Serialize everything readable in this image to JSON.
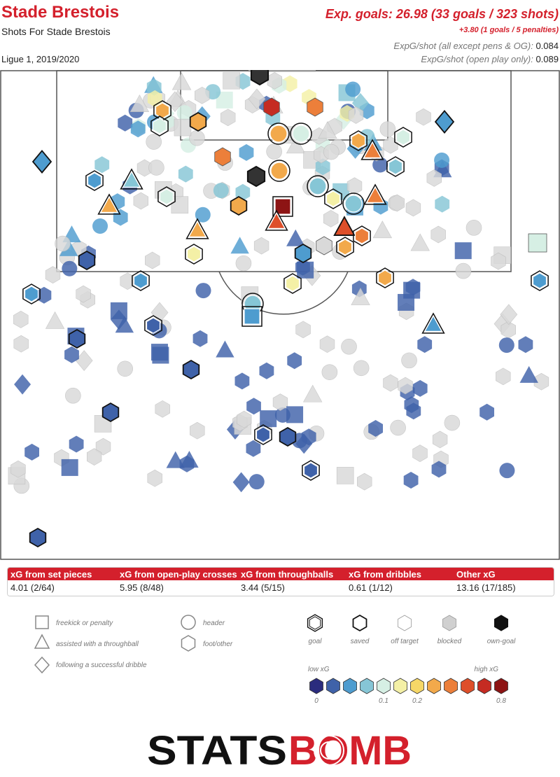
{
  "header": {
    "team": "Stade Brestois",
    "subtitle": "Shots For Stade Brestois",
    "competition": "Ligue 1, 2019/2020",
    "xg_main": "Exp. goals: 26.98 (33 goals / 323 shots)",
    "xg_penalties": "+3.80 (1 goals / 5 penalties)",
    "xg_per_shot_all_label": "ExpG/shot (all except pens & OG):",
    "xg_per_shot_all_value": "0.084",
    "xg_per_shot_open_label": "ExpG/shot (open play only):",
    "xg_per_shot_open_value": "0.089"
  },
  "breakdown": {
    "headers": [
      "xG from set pieces",
      "xG from open-play crosses",
      "xG from throughballs",
      "xG from dribbles",
      "Other xG"
    ],
    "values": [
      "4.01 (2/64)",
      "5.95 (8/48)",
      "3.44 (5/15)",
      "0.61 (1/12)",
      "13.16 (17/185)"
    ]
  },
  "legend": {
    "shape_labels": {
      "freekick": "freekick or penalty",
      "throughball": "assisted with a throughball",
      "dribble": "following a successful dribble",
      "header": "header",
      "foot": "foot/other"
    },
    "outcome_labels": {
      "goal": "goal",
      "saved": "saved",
      "off_target": "off target",
      "blocked": "blocked",
      "own_goal": "own-goal"
    },
    "scale_low": "low xG",
    "scale_high": "high xG",
    "scale_ticks": [
      "0",
      "0.1",
      "0.2",
      "0.8"
    ],
    "scale_colors": [
      "#2b2c7e",
      "#3f62a9",
      "#4e9ccf",
      "#86c6d6",
      "#d6efe4",
      "#f4f0a6",
      "#f6d767",
      "#f2a94b",
      "#ec7f3a",
      "#de4f2a",
      "#c52b22",
      "#8d1414"
    ]
  },
  "logo": {
    "part1": "STATS",
    "part2": "BOMB"
  },
  "colors": {
    "brand_red": "#d4202c",
    "blocked_grey": "#d9d9d9",
    "pitch_line": "#555555"
  },
  "chart_data": {
    "type": "scatter",
    "title": "Shots For Stade Brestois",
    "x_axis": "pitch width, 0 = left touchline, 80 = right touchline (visible half)",
    "y_axis": "distance from goal line, 0 = goal line, 70 = bottom of visible area",
    "xlim": [
      0,
      80
    ],
    "ylim": [
      0,
      70
    ],
    "points": [
      {
        "x": 37.1,
        "y": 0.7,
        "xg": 0.0,
        "shape": "foot",
        "outcome": "own-goal"
      },
      {
        "x": 38.8,
        "y": 5.3,
        "xg": 0.7,
        "shape": "foot",
        "outcome": "off"
      },
      {
        "x": 45.0,
        "y": 5.3,
        "xg": 0.35,
        "shape": "foot",
        "outcome": "off"
      },
      {
        "x": 23.2,
        "y": 5.8,
        "xg": 0.2,
        "shape": "foot",
        "outcome": "goal"
      },
      {
        "x": 28.3,
        "y": 7.4,
        "xg": 0.2,
        "shape": "foot",
        "outcome": "saved"
      },
      {
        "x": 22.8,
        "y": 8.0,
        "xg": 0.09,
        "shape": "foot",
        "outcome": "goal"
      },
      {
        "x": 63.5,
        "y": 7.4,
        "xg": 0.03,
        "shape": "dribble",
        "outcome": "saved"
      },
      {
        "x": 39.8,
        "y": 9.1,
        "xg": 0.2,
        "shape": "header",
        "outcome": "goal"
      },
      {
        "x": 43.0,
        "y": 9.1,
        "xg": 0.09,
        "shape": "header",
        "outcome": "goal"
      },
      {
        "x": 51.2,
        "y": 10.1,
        "xg": 0.2,
        "shape": "foot",
        "outcome": "goal"
      },
      {
        "x": 57.6,
        "y": 9.6,
        "xg": 0.09,
        "shape": "foot",
        "outcome": "goal"
      },
      {
        "x": 53.2,
        "y": 11.6,
        "xg": 0.3,
        "shape": "throughball",
        "outcome": "goal"
      },
      {
        "x": 31.8,
        "y": 12.4,
        "xg": 0.3,
        "shape": "foot",
        "outcome": "off"
      },
      {
        "x": 6.0,
        "y": 13.1,
        "xg": 0.03,
        "shape": "dribble",
        "outcome": "saved"
      },
      {
        "x": 56.5,
        "y": 13.8,
        "xg": 0.04,
        "shape": "foot",
        "outcome": "goal"
      },
      {
        "x": 36.6,
        "y": 15.2,
        "xg": 0.0,
        "shape": "foot",
        "outcome": "own-goal"
      },
      {
        "x": 39.9,
        "y": 14.4,
        "xg": 0.2,
        "shape": "header",
        "outcome": "goal"
      },
      {
        "x": 13.5,
        "y": 15.8,
        "xg": 0.02,
        "shape": "foot",
        "outcome": "goal"
      },
      {
        "x": 18.8,
        "y": 15.8,
        "xg": 0.04,
        "shape": "throughball",
        "outcome": "goal"
      },
      {
        "x": 23.8,
        "y": 18.1,
        "xg": 0.09,
        "shape": "foot",
        "outcome": "goal"
      },
      {
        "x": 45.4,
        "y": 16.6,
        "xg": 0.04,
        "shape": "header",
        "outcome": "goal"
      },
      {
        "x": 47.6,
        "y": 18.4,
        "xg": 0.1,
        "shape": "foot",
        "outcome": "goal"
      },
      {
        "x": 53.6,
        "y": 18.0,
        "xg": 0.3,
        "shape": "throughball",
        "outcome": "goal"
      },
      {
        "x": 15.6,
        "y": 19.4,
        "xg": 0.2,
        "shape": "throughball",
        "outcome": "goal"
      },
      {
        "x": 34.1,
        "y": 19.4,
        "xg": 0.2,
        "shape": "foot",
        "outcome": "saved"
      },
      {
        "x": 40.4,
        "y": 19.5,
        "xg": 0.8,
        "shape": "freekick",
        "outcome": "goal"
      },
      {
        "x": 50.5,
        "y": 19.1,
        "xg": 0.04,
        "shape": "header",
        "outcome": "goal"
      },
      {
        "x": 28.2,
        "y": 22.9,
        "xg": 0.2,
        "shape": "throughball",
        "outcome": "goal"
      },
      {
        "x": 39.5,
        "y": 21.7,
        "xg": 0.55,
        "shape": "throughball",
        "outcome": "goal"
      },
      {
        "x": 49.2,
        "y": 22.5,
        "xg": 0.55,
        "shape": "throughball",
        "outcome": "saved"
      },
      {
        "x": 51.7,
        "y": 23.7,
        "xg": 0.3,
        "shape": "foot",
        "outcome": "goal"
      },
      {
        "x": 49.3,
        "y": 25.3,
        "xg": 0.2,
        "shape": "foot",
        "outcome": "goal"
      },
      {
        "x": 43.3,
        "y": 26.2,
        "xg": 0.03,
        "shape": "foot",
        "outcome": "saved"
      },
      {
        "x": 27.7,
        "y": 26.3,
        "xg": 0.1,
        "shape": "foot",
        "outcome": "goal"
      },
      {
        "x": 41.8,
        "y": 30.5,
        "xg": 0.1,
        "shape": "foot",
        "outcome": "goal"
      },
      {
        "x": 55.0,
        "y": 29.7,
        "xg": 0.2,
        "shape": "foot",
        "outcome": "goal"
      },
      {
        "x": 20.1,
        "y": 30.1,
        "xg": 0.03,
        "shape": "foot",
        "outcome": "goal"
      },
      {
        "x": 12.4,
        "y": 27.2,
        "xg": 0.01,
        "shape": "foot",
        "outcome": "saved"
      },
      {
        "x": 36.1,
        "y": 33.4,
        "xg": 0.04,
        "shape": "header",
        "outcome": "goal"
      },
      {
        "x": 36.0,
        "y": 35.2,
        "xg": 0.03,
        "shape": "freekick",
        "outcome": "goal"
      },
      {
        "x": 61.9,
        "y": 36.4,
        "xg": 0.03,
        "shape": "throughball",
        "outcome": "goal"
      },
      {
        "x": 21.9,
        "y": 36.5,
        "xg": 0.01,
        "shape": "foot",
        "outcome": "goal"
      },
      {
        "x": 11.0,
        "y": 38.4,
        "xg": 0.01,
        "shape": "foot",
        "outcome": "saved"
      },
      {
        "x": 27.3,
        "y": 42.8,
        "xg": 0.01,
        "shape": "foot",
        "outcome": "saved"
      },
      {
        "x": 15.8,
        "y": 48.9,
        "xg": 0.01,
        "shape": "foot",
        "outcome": "saved"
      },
      {
        "x": 37.6,
        "y": 52.1,
        "xg": 0.01,
        "shape": "foot",
        "outcome": "goal"
      },
      {
        "x": 41.1,
        "y": 52.4,
        "xg": 0.01,
        "shape": "foot",
        "outcome": "saved"
      },
      {
        "x": 44.4,
        "y": 57.2,
        "xg": 0.01,
        "shape": "foot",
        "outcome": "goal"
      },
      {
        "x": 5.4,
        "y": 66.8,
        "xg": 0.01,
        "shape": "foot",
        "outcome": "saved"
      },
      {
        "x": 77.1,
        "y": 30.1,
        "xg": 0.02,
        "shape": "foot",
        "outcome": "goal"
      },
      {
        "x": 4.5,
        "y": 32.0,
        "xg": 0.02,
        "shape": "foot",
        "outcome": "goal"
      },
      {
        "x": 76.8,
        "y": 24.7,
        "xg": 0.07,
        "shape": "freekick",
        "outcome": "off"
      },
      {
        "x": 46.3,
        "y": 25.1,
        "xg": 0.2,
        "shape": "foot",
        "outcome": "blocked"
      }
    ],
    "series_note": "Main goal / on-target / off-target markers read from the plot; additional translucent off-target and blocked markers are drawn as background scatter."
  }
}
